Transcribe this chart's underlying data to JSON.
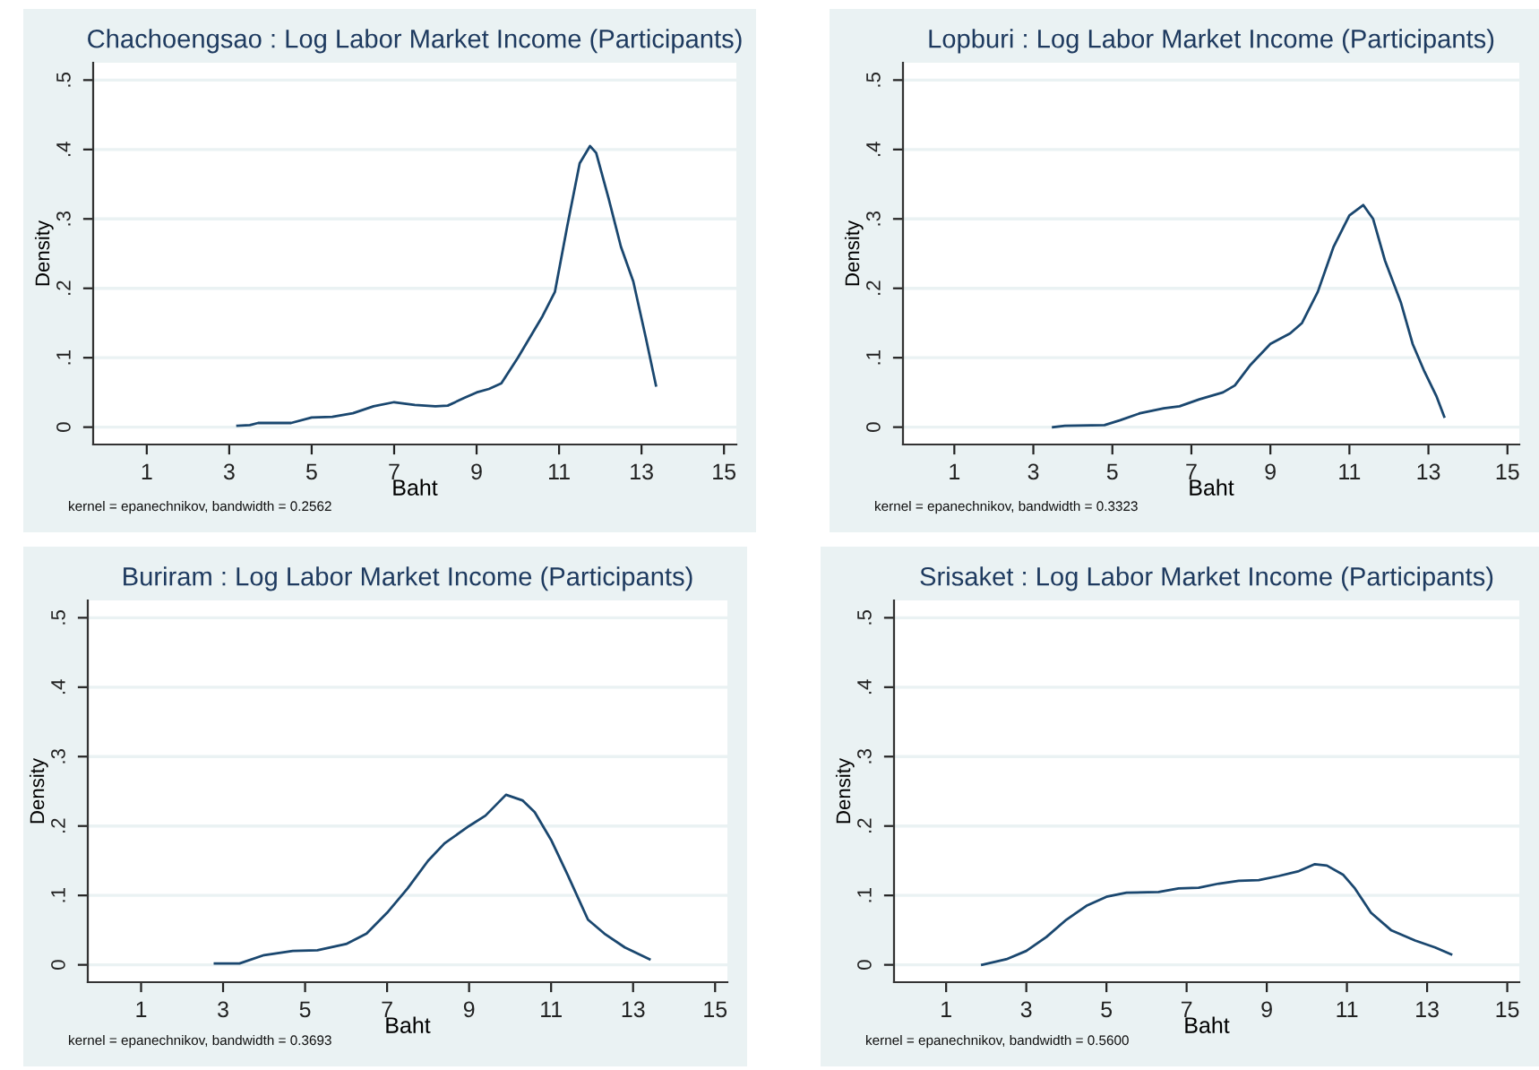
{
  "chart_data": [
    {
      "type": "line",
      "title": "Chachoengsao : Log Labor Market Income (Participants)",
      "xlabel": "Baht",
      "ylabel": "Density",
      "annotations": [
        "kernel = epanechnikov, bandwidth = 0.2562"
      ],
      "xlim": [
        -0.3,
        15.3
      ],
      "ylim": [
        -0.025,
        0.525
      ],
      "xticks": [
        1,
        3,
        5,
        7,
        9,
        11,
        13,
        15
      ],
      "yticks": [
        {
          "value": 0,
          "label": "0"
        },
        {
          "value": 0.1,
          "label": ".1"
        },
        {
          "value": 0.2,
          "label": ".2"
        },
        {
          "value": 0.3,
          "label": ".3"
        },
        {
          "value": 0.4,
          "label": ".4"
        },
        {
          "value": 0.5,
          "label": ".5"
        }
      ],
      "grid": "y",
      "legend": false,
      "series": [
        {
          "color": "#1a476f",
          "x": [
            3.2,
            3.5,
            3.7,
            4.5,
            5,
            5.5,
            6,
            6.5,
            7,
            7.5,
            8,
            8.3,
            8.7,
            9,
            9.3,
            9.6,
            10,
            10.3,
            10.6,
            10.9,
            11.2,
            11.5,
            11.75,
            11.9,
            12.2,
            12.5,
            12.8,
            13.1,
            13.35
          ],
          "values": [
            0.002,
            0.003,
            0.006,
            0.006,
            0.014,
            0.015,
            0.02,
            0.03,
            0.036,
            0.032,
            0.03,
            0.031,
            0.042,
            0.05,
            0.055,
            0.063,
            0.1,
            0.13,
            0.16,
            0.195,
            0.29,
            0.38,
            0.405,
            0.395,
            0.33,
            0.26,
            0.21,
            0.13,
            0.06
          ]
        }
      ]
    },
    {
      "type": "line",
      "title": "Lopburi : Log Labor Market Income (Participants)",
      "xlabel": "Baht",
      "ylabel": "Density",
      "annotations": [
        "kernel = epanechnikov, bandwidth = 0.3323"
      ],
      "xlim": [
        -0.3,
        15.3
      ],
      "ylim": [
        -0.025,
        0.525
      ],
      "xticks": [
        1,
        3,
        5,
        7,
        9,
        11,
        13,
        15
      ],
      "yticks": [
        {
          "value": 0,
          "label": "0"
        },
        {
          "value": 0.1,
          "label": ".1"
        },
        {
          "value": 0.2,
          "label": ".2"
        },
        {
          "value": 0.3,
          "label": ".3"
        },
        {
          "value": 0.4,
          "label": ".4"
        },
        {
          "value": 0.5,
          "label": ".5"
        }
      ],
      "grid": "y",
      "legend": false,
      "series": [
        {
          "color": "#1a476f",
          "x": [
            3.5,
            3.8,
            4.8,
            5.2,
            5.7,
            6.3,
            6.7,
            7.2,
            7.8,
            8.1,
            8.5,
            9,
            9.5,
            9.8,
            10.2,
            10.6,
            11,
            11.35,
            11.6,
            11.9,
            12.3,
            12.6,
            12.9,
            13.2,
            13.4
          ],
          "values": [
            0,
            0.002,
            0.003,
            0.01,
            0.02,
            0.027,
            0.03,
            0.04,
            0.05,
            0.06,
            0.09,
            0.12,
            0.135,
            0.15,
            0.195,
            0.26,
            0.305,
            0.32,
            0.3,
            0.24,
            0.18,
            0.12,
            0.08,
            0.045,
            0.015
          ]
        }
      ]
    },
    {
      "type": "line",
      "title": "Buriram : Log Labor Market Income (Participants)",
      "xlabel": "Baht",
      "ylabel": "Density",
      "annotations": [
        "kernel = epanechnikov, bandwidth = 0.3693"
      ],
      "xlim": [
        -0.3,
        15.3
      ],
      "ylim": [
        -0.025,
        0.525
      ],
      "xticks": [
        1,
        3,
        5,
        7,
        9,
        11,
        13,
        15
      ],
      "yticks": [
        {
          "value": 0,
          "label": "0"
        },
        {
          "value": 0.1,
          "label": ".1"
        },
        {
          "value": 0.2,
          "label": ".2"
        },
        {
          "value": 0.3,
          "label": ".3"
        },
        {
          "value": 0.4,
          "label": ".4"
        },
        {
          "value": 0.5,
          "label": ".5"
        }
      ],
      "grid": "y",
      "legend": false,
      "series": [
        {
          "color": "#1a476f",
          "x": [
            2.8,
            3.4,
            4,
            4.7,
            5.3,
            6,
            6.5,
            7,
            7.5,
            8,
            8.4,
            9,
            9.4,
            9.9,
            10.3,
            10.6,
            11,
            11.4,
            11.9,
            12.3,
            12.8,
            13.4
          ],
          "values": [
            0.002,
            0.002,
            0.014,
            0.02,
            0.021,
            0.03,
            0.045,
            0.075,
            0.11,
            0.15,
            0.175,
            0.2,
            0.215,
            0.245,
            0.237,
            0.22,
            0.18,
            0.13,
            0.065,
            0.045,
            0.025,
            0.008
          ]
        }
      ]
    },
    {
      "type": "line",
      "title": "Srisaket : Log Labor Market Income (Participants)",
      "xlabel": "Baht",
      "ylabel": "Density",
      "annotations": [
        "kernel = epanechnikov, bandwidth = 0.5600"
      ],
      "xlim": [
        -0.3,
        15.3
      ],
      "ylim": [
        -0.025,
        0.525
      ],
      "xticks": [
        1,
        3,
        5,
        7,
        9,
        11,
        13,
        15
      ],
      "yticks": [
        {
          "value": 0,
          "label": "0"
        },
        {
          "value": 0.1,
          "label": ".1"
        },
        {
          "value": 0.2,
          "label": ".2"
        },
        {
          "value": 0.3,
          "label": ".3"
        },
        {
          "value": 0.4,
          "label": ".4"
        },
        {
          "value": 0.5,
          "label": ".5"
        }
      ],
      "grid": "y",
      "legend": false,
      "series": [
        {
          "color": "#1a476f",
          "x": [
            1.9,
            2.5,
            3,
            3.5,
            4,
            4.5,
            5,
            5.5,
            6.3,
            6.8,
            7.3,
            7.8,
            8.3,
            8.8,
            9.3,
            9.8,
            10.2,
            10.5,
            10.9,
            11.2,
            11.6,
            12.1,
            12.7,
            13.2,
            13.6
          ],
          "values": [
            0,
            0.008,
            0.02,
            0.04,
            0.065,
            0.085,
            0.098,
            0.104,
            0.105,
            0.11,
            0.111,
            0.117,
            0.121,
            0.122,
            0.128,
            0.135,
            0.145,
            0.143,
            0.13,
            0.11,
            0.075,
            0.05,
            0.035,
            0.025,
            0.015
          ]
        }
      ]
    }
  ]
}
